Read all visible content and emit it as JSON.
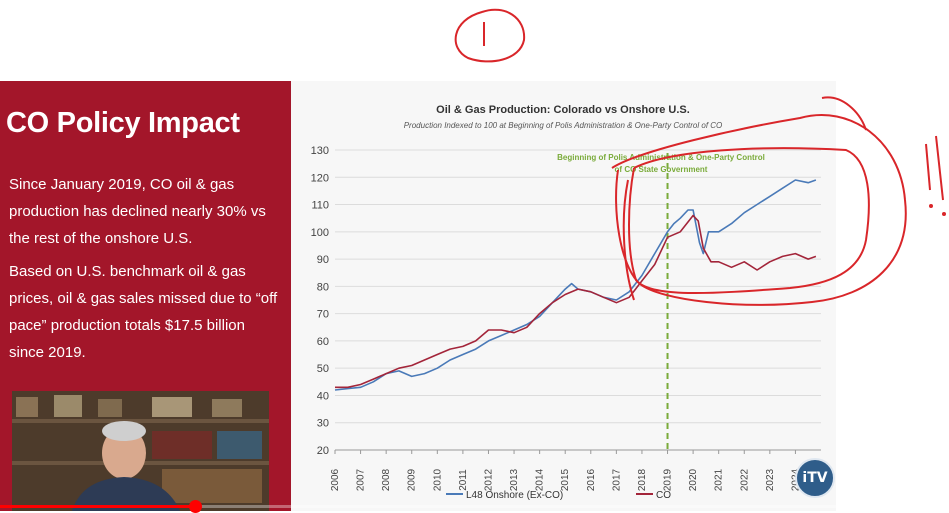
{
  "panel": {
    "title": "CO Policy Impact",
    "paragraph1": "Since January 2019, CO oil & gas production has declined nearly 30% vs the rest of the onshore U.S.",
    "paragraph2": "Based on U.S. benchmark oil & gas prices, oil & gas sales missed due to “off pace” production totals $17.5 billion since 2019."
  },
  "player": {
    "progress_fraction": 0.205,
    "accent_color": "#ff0000"
  },
  "logo": {
    "text": "iTV"
  },
  "chart_data": {
    "type": "line",
    "title": "Oil & Gas Production: Colorado vs Onshore U.S.",
    "subtitle": "Production Indexed to 100 at Beginning of Polis Administration & One-Party Control of CO",
    "annotation_line1": "Beginning of Polis Administration & One-Party Control",
    "annotation_line2": "of CO State Government",
    "annotation_x": 2019,
    "x_ticks": [
      2006,
      2007,
      2008,
      2009,
      2010,
      2011,
      2012,
      2013,
      2014,
      2015,
      2016,
      2017,
      2018,
      2019,
      2020,
      2021,
      2022,
      2023,
      2024
    ],
    "y_ticks": [
      20,
      30,
      40,
      50,
      60,
      70,
      80,
      90,
      100,
      110,
      120,
      130
    ],
    "ylim": [
      20,
      130
    ],
    "xlim": [
      2006,
      2025
    ],
    "grid": true,
    "legend_position": "bottom",
    "colors": {
      "l48": "#4a7ab8",
      "co": "#a3253a",
      "annotation": "#7aab3a"
    },
    "series": [
      {
        "name": "L48 Onshore (Ex-CO)",
        "x": [
          2006,
          2006.5,
          2007,
          2007.5,
          2008,
          2008.5,
          2009,
          2009.5,
          2010,
          2010.5,
          2011,
          2011.5,
          2012,
          2012.5,
          2013,
          2013.5,
          2014,
          2014.5,
          2015,
          2015.25,
          2015.5,
          2016,
          2016.5,
          2017,
          2017.5,
          2018,
          2018.5,
          2019,
          2019.25,
          2019.5,
          2019.8,
          2020,
          2020.25,
          2020.4,
          2020.6,
          2021,
          2021.5,
          2022,
          2022.5,
          2023,
          2023.5,
          2024,
          2024.5,
          2024.8
        ],
        "values": [
          42,
          42.5,
          43,
          45,
          48,
          49,
          47,
          48,
          50,
          53,
          55,
          57,
          60,
          62,
          64,
          66,
          69,
          74,
          79,
          81,
          79,
          78,
          76,
          75,
          78,
          84,
          92,
          100,
          103,
          105,
          108,
          108,
          96,
          92,
          100,
          100,
          103,
          107,
          110,
          113,
          116,
          119,
          118,
          119
        ]
      },
      {
        "name": "CO",
        "x": [
          2006,
          2006.5,
          2007,
          2007.5,
          2008,
          2008.5,
          2009,
          2009.5,
          2010,
          2010.5,
          2011,
          2011.5,
          2012,
          2012.5,
          2013,
          2013.5,
          2014,
          2014.5,
          2015,
          2015.5,
          2016,
          2016.5,
          2017,
          2017.5,
          2018,
          2018.5,
          2019,
          2019.5,
          2020,
          2020.2,
          2020.4,
          2020.7,
          2021,
          2021.5,
          2022,
          2022.5,
          2023,
          2023.5,
          2024,
          2024.5,
          2024.8
        ],
        "values": [
          43,
          43,
          44,
          46,
          48,
          50,
          51,
          53,
          55,
          57,
          58,
          60,
          64,
          64,
          63,
          65,
          70,
          74,
          77,
          79,
          78,
          76,
          74,
          76,
          82,
          88,
          98,
          100,
          106,
          104,
          94,
          89,
          89,
          87,
          89,
          86,
          89,
          91,
          92,
          90,
          91
        ]
      }
    ]
  }
}
